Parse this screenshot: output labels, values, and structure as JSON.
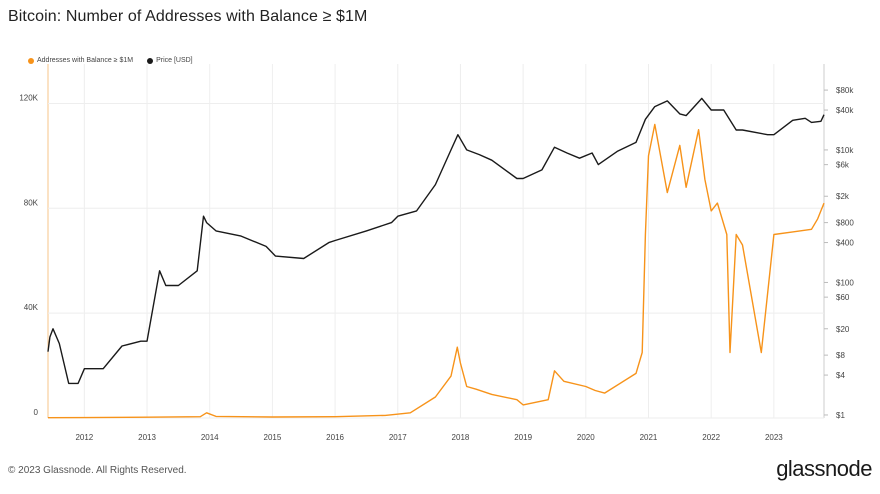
{
  "title": "Bitcoin: Number of Addresses with Balance ≥ $1M",
  "footer": "© 2023 Glassnode. All Rights Reserved.",
  "brand": "glassnode",
  "legend": {
    "series1": "Addresses with Balance ≥ $1M",
    "series2": "Price [USD]"
  },
  "colors": {
    "orange": "#f7931a",
    "black": "#1a1a1a"
  },
  "chart_data": {
    "type": "line",
    "grid": true,
    "x_ticks": [
      "2012",
      "2013",
      "2014",
      "2015",
      "2016",
      "2017",
      "2018",
      "2019",
      "2020",
      "2021",
      "2022",
      "2023"
    ],
    "x_range": [
      2011.42,
      2023.8
    ],
    "left_axis": {
      "ticks": [
        "0",
        "40K",
        "80K",
        "120K"
      ],
      "ylim": [
        0,
        132000
      ]
    },
    "right_axis": {
      "ticks": [
        "$1",
        "$4",
        "$8",
        "$20",
        "$60",
        "$100",
        "$400",
        "$800",
        "$2k",
        "$6k",
        "$10k",
        "$40k",
        "$80k"
      ],
      "tick_values": [
        1,
        4,
        8,
        20,
        60,
        100,
        400,
        800,
        2000,
        6000,
        10000,
        40000,
        80000
      ],
      "scale": "log",
      "ylim": [
        0.9,
        150000
      ]
    },
    "series": [
      {
        "name": "Addresses with Balance ≥ $1M",
        "axis": "left",
        "color": "#f7931a",
        "x": [
          2011.42,
          2012.0,
          2013.0,
          2013.85,
          2013.95,
          2014.1,
          2015.0,
          2016.0,
          2016.8,
          2017.2,
          2017.6,
          2017.85,
          2017.95,
          2018.0,
          2018.1,
          2018.25,
          2018.5,
          2018.9,
          2019.0,
          2019.4,
          2019.5,
          2019.65,
          2020.0,
          2020.15,
          2020.3,
          2020.8,
          2020.9,
          2020.95,
          2021.0,
          2021.1,
          2021.3,
          2021.5,
          2021.6,
          2021.8,
          2021.9,
          2022.0,
          2022.1,
          2022.25,
          2022.3,
          2022.4,
          2022.5,
          2022.8,
          2023.0,
          2023.3,
          2023.6,
          2023.7,
          2023.8
        ],
        "y": [
          100,
          150,
          300,
          500,
          2000,
          600,
          400,
          500,
          1000,
          2000,
          8000,
          16000,
          27000,
          21000,
          12000,
          11000,
          9000,
          7000,
          5000,
          7000,
          18000,
          14000,
          12000,
          10500,
          9500,
          17000,
          25000,
          70000,
          100000,
          112000,
          86000,
          104000,
          88000,
          110000,
          91000,
          79000,
          82000,
          70000,
          25000,
          70000,
          66000,
          25000,
          70000,
          71000,
          72000,
          76000,
          82000
        ]
      },
      {
        "name": "Price [USD]",
        "axis": "right",
        "color": "#1a1a1a",
        "x": [
          2011.42,
          2011.45,
          2011.5,
          2011.6,
          2011.75,
          2011.9,
          2012.0,
          2012.3,
          2012.6,
          2012.9,
          2013.0,
          2013.2,
          2013.3,
          2013.5,
          2013.8,
          2013.9,
          2013.95,
          2014.1,
          2014.5,
          2014.9,
          2015.05,
          2015.5,
          2015.9,
          2016.0,
          2016.5,
          2016.9,
          2017.0,
          2017.3,
          2017.6,
          2017.85,
          2017.96,
          2018.1,
          2018.3,
          2018.5,
          2018.9,
          2019.0,
          2019.3,
          2019.5,
          2019.7,
          2019.9,
          2020.1,
          2020.2,
          2020.5,
          2020.8,
          2020.95,
          2021.1,
          2021.3,
          2021.5,
          2021.6,
          2021.85,
          2022.0,
          2022.2,
          2022.4,
          2022.5,
          2022.9,
          2023.0,
          2023.3,
          2023.5,
          2023.6,
          2023.75,
          2023.8
        ],
        "y": [
          9,
          15,
          20,
          12,
          3,
          3,
          5,
          5,
          11,
          13,
          13,
          150,
          90,
          90,
          150,
          1000,
          800,
          600,
          500,
          350,
          250,
          230,
          400,
          430,
          600,
          800,
          1000,
          1200,
          3000,
          10000,
          17000,
          10000,
          8500,
          7000,
          3700,
          3700,
          5000,
          11000,
          9000,
          7500,
          9000,
          6000,
          9500,
          13000,
          29000,
          45000,
          55000,
          35000,
          33000,
          60000,
          40000,
          40000,
          20000,
          20000,
          17000,
          17000,
          28000,
          30000,
          26000,
          27000,
          34000
        ]
      }
    ]
  }
}
